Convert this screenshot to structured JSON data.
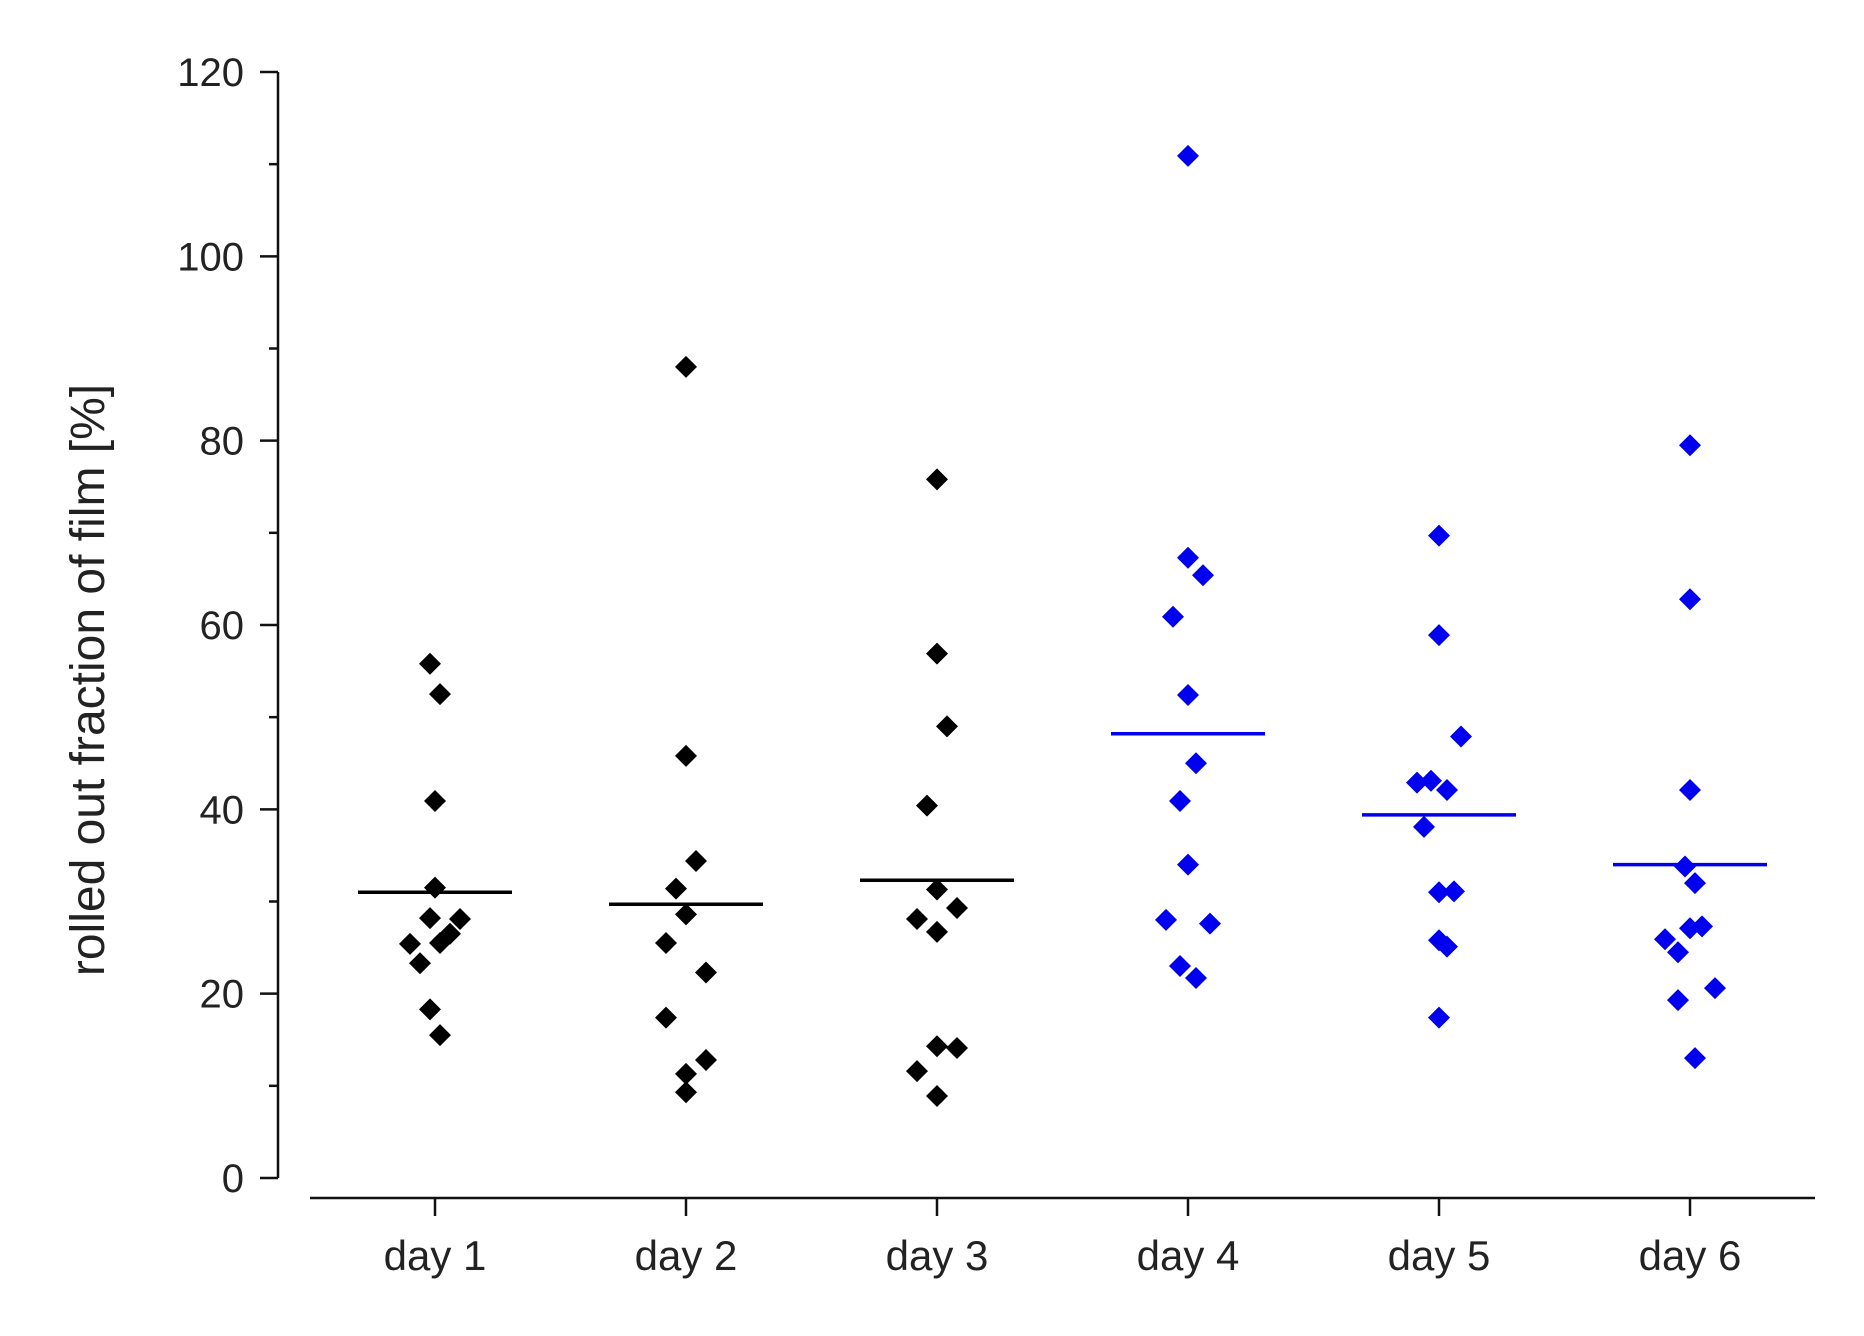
{
  "chart_data": {
    "type": "scatter",
    "title": "",
    "xlabel": "",
    "ylabel": "rolled out fraction of film [%]",
    "ylim": [
      0,
      120
    ],
    "yticks": [
      0,
      20,
      40,
      60,
      80,
      100,
      120
    ],
    "yminor_step": 10,
    "grid": false,
    "legend": "none",
    "categories": [
      "day 1",
      "day 2",
      "day 3",
      "day 4",
      "day 5",
      "day 6"
    ],
    "category_colors": [
      "#000000",
      "#000000",
      "#000000",
      "#0000ee",
      "#0000ee",
      "#0000ee"
    ],
    "means": [
      31,
      29.7,
      32.3,
      48.2,
      39.4,
      34
    ],
    "points": [
      [
        {
          "x": 0.0,
          "y": 31.5
        },
        {
          "x": 0.0,
          "y": 40.9
        },
        {
          "x": -0.05,
          "y": 55.8
        },
        {
          "x": 0.05,
          "y": 52.5
        },
        {
          "x": -0.05,
          "y": 28.2
        },
        {
          "x": 0.05,
          "y": 25.5
        },
        {
          "x": 0.15,
          "y": 26.5
        },
        {
          "x": 0.25,
          "y": 28.1
        },
        {
          "x": -0.25,
          "y": 25.4
        },
        {
          "x": -0.15,
          "y": 23.3
        },
        {
          "x": -0.05,
          "y": 18.3
        },
        {
          "x": 0.05,
          "y": 15.5
        }
      ],
      [
        {
          "x": 0.0,
          "y": 88.0
        },
        {
          "x": 0.0,
          "y": 45.8
        },
        {
          "x": 0.1,
          "y": 34.4
        },
        {
          "x": -0.1,
          "y": 31.4
        },
        {
          "x": 0.0,
          "y": 28.6
        },
        {
          "x": -0.2,
          "y": 25.5
        },
        {
          "x": 0.2,
          "y": 22.3
        },
        {
          "x": -0.2,
          "y": 17.4
        },
        {
          "x": 0.2,
          "y": 12.8
        },
        {
          "x": 0.0,
          "y": 11.3
        },
        {
          "x": 0.0,
          "y": 9.3
        }
      ],
      [
        {
          "x": 0.0,
          "y": 75.8
        },
        {
          "x": 0.0,
          "y": 56.9
        },
        {
          "x": 0.1,
          "y": 49.0
        },
        {
          "x": -0.1,
          "y": 40.4
        },
        {
          "x": 0.0,
          "y": 31.3
        },
        {
          "x": 0.2,
          "y": 29.3
        },
        {
          "x": -0.2,
          "y": 28.1
        },
        {
          "x": 0.0,
          "y": 26.7
        },
        {
          "x": 0.0,
          "y": 14.3
        },
        {
          "x": 0.2,
          "y": 14.1
        },
        {
          "x": -0.2,
          "y": 11.6
        },
        {
          "x": 0.0,
          "y": 8.9
        }
      ],
      [
        {
          "x": 0.0,
          "y": 110.9
        },
        {
          "x": 0.0,
          "y": 67.3
        },
        {
          "x": 0.15,
          "y": 65.4
        },
        {
          "x": -0.15,
          "y": 60.9
        },
        {
          "x": 0.0,
          "y": 52.4
        },
        {
          "x": 0.08,
          "y": 45.0
        },
        {
          "x": -0.08,
          "y": 40.9
        },
        {
          "x": 0.0,
          "y": 34.0
        },
        {
          "x": -0.22,
          "y": 28.0
        },
        {
          "x": 0.22,
          "y": 27.6
        },
        {
          "x": -0.08,
          "y": 23.0
        },
        {
          "x": 0.08,
          "y": 21.7
        }
      ],
      [
        {
          "x": 0.0,
          "y": 69.7
        },
        {
          "x": 0.0,
          "y": 58.9
        },
        {
          "x": 0.22,
          "y": 47.9
        },
        {
          "x": -0.22,
          "y": 42.9
        },
        {
          "x": -0.08,
          "y": 43.1
        },
        {
          "x": 0.08,
          "y": 42.1
        },
        {
          "x": -0.15,
          "y": 38.1
        },
        {
          "x": 0.0,
          "y": 31.0
        },
        {
          "x": 0.15,
          "y": 31.1
        },
        {
          "x": 0.0,
          "y": 25.8
        },
        {
          "x": 0.08,
          "y": 25.1
        },
        {
          "x": 0.0,
          "y": 17.4
        }
      ],
      [
        {
          "x": 0.0,
          "y": 79.5
        },
        {
          "x": 0.0,
          "y": 62.8
        },
        {
          "x": 0.0,
          "y": 42.1
        },
        {
          "x": -0.05,
          "y": 33.8
        },
        {
          "x": 0.05,
          "y": 32.0
        },
        {
          "x": -0.25,
          "y": 25.9
        },
        {
          "x": -0.12,
          "y": 24.5
        },
        {
          "x": 0.0,
          "y": 27.1
        },
        {
          "x": 0.12,
          "y": 27.3
        },
        {
          "x": 0.25,
          "y": 20.6
        },
        {
          "x": -0.12,
          "y": 19.3
        },
        {
          "x": 0.05,
          "y": 13.0
        }
      ]
    ]
  }
}
